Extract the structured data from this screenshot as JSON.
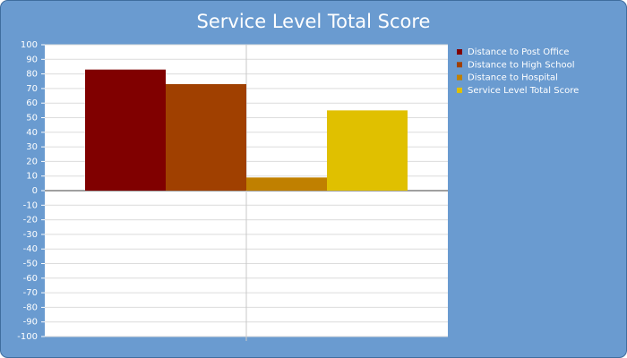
{
  "chart_data": {
    "type": "bar",
    "title": "Service Level Total Score",
    "categories": [
      null
    ],
    "series": [
      {
        "name": "Distance to Post Office",
        "color": "#800000",
        "values": [
          83
        ]
      },
      {
        "name": "Distance to High School",
        "color": "#a04000",
        "values": [
          73
        ]
      },
      {
        "name": "Distance to Hospital",
        "color": "#c08000",
        "values": [
          9
        ]
      },
      {
        "name": "Service Level Total Score",
        "color": "#e0c000",
        "values": [
          55
        ]
      }
    ],
    "ylim": [
      -100,
      100
    ],
    "yticks": [
      -100,
      -90,
      -80,
      -70,
      -60,
      -50,
      -40,
      -30,
      -20,
      -10,
      0,
      10,
      20,
      30,
      40,
      50,
      60,
      70,
      80,
      90,
      100
    ],
    "grid": true,
    "legend": "right"
  }
}
